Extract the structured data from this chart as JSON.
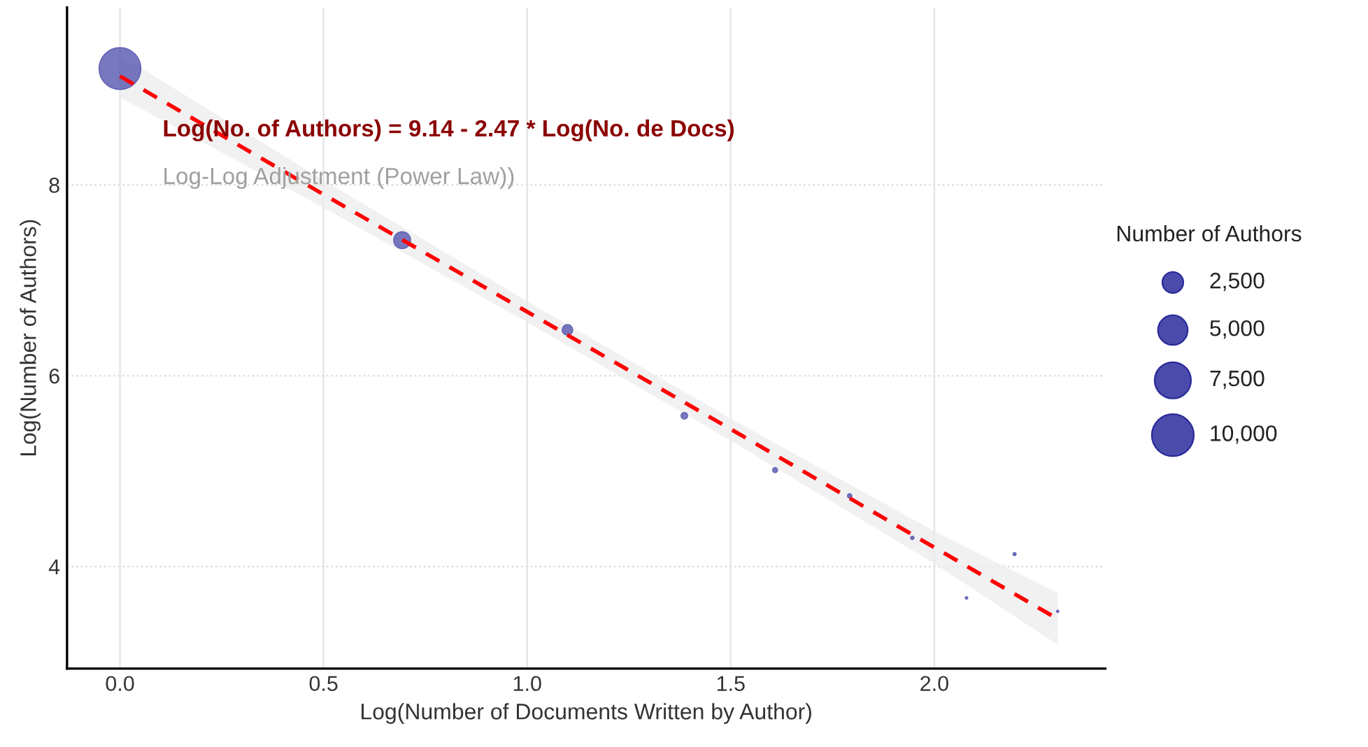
{
  "chart_data": {
    "type": "bubble",
    "xlabel": "Log(Number of Documents Written by Author)",
    "ylabel": "Log(Number of Authors)",
    "legend_title": "Number of Authors",
    "annotations": [
      "Log(No. of Authors) = 9.14 - 2.47 * Log(No. de Docs)",
      "Log-Log Adjustment (Power Law))"
    ],
    "series": [
      {
        "color": "#4b4bab",
        "x": [
          0,
          0.693,
          1.099,
          1.386,
          1.609,
          1.792,
          1.946,
          2.079,
          2.197,
          2.303
        ],
        "values": [
          9.22,
          7.42,
          6.48,
          5.58,
          5.01,
          4.74,
          4.3,
          3.67,
          4.13,
          3.53
        ],
        "sizes": [
          10000,
          1650,
          650,
          260,
          150,
          113,
          73,
          40,
          62,
          34
        ]
      },
      {
        "type": "line",
        "color": "#ff0000",
        "line_style": "dashed",
        "x": [
          0,
          0.5,
          1.0,
          1.5,
          2.0,
          2.303
        ],
        "values": [
          9.14,
          7.9,
          6.67,
          5.44,
          4.2,
          3.45
        ],
        "lower": [
          8.92,
          7.76,
          6.56,
          5.32,
          4.03,
          3.18
        ],
        "upper": [
          9.36,
          8.05,
          6.78,
          5.55,
          4.37,
          3.72
        ]
      }
    ],
    "size_legend": [
      {
        "value": 2500,
        "label": "2,500"
      },
      {
        "value": 5000,
        "label": "5,000"
      },
      {
        "value": 7500,
        "label": "7,500"
      },
      {
        "value": 10000,
        "label": "10,000"
      }
    ],
    "xlim": [
      -0.13,
      2.42
    ],
    "ylim": [
      2.93,
      9.86
    ],
    "xticks": [
      {
        "value": 0,
        "label": "0.0"
      },
      0.5,
      {
        "value": 1,
        "label": "1.0"
      },
      1.5,
      {
        "value": 2,
        "label": "2.0"
      }
    ],
    "yticks": [
      4,
      6,
      8
    ],
    "grid": true
  }
}
